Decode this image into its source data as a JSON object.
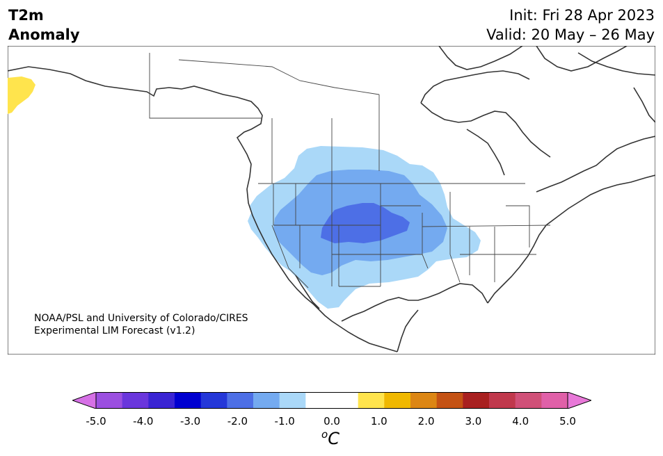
{
  "header": {
    "title_line1": "T2m",
    "title_line2": "Anomaly",
    "init": "Init: Fri 28 Apr 2023",
    "valid": "Valid: 20 May – 26 May"
  },
  "credit": {
    "line1": "NOAA/PSL and University of Colorado/CIRES",
    "line2": "Experimental LIM Forecast (v1.2)"
  },
  "colorbar": {
    "ticks": [
      "-5.0",
      "-4.0",
      "-3.0",
      "-2.0",
      "-1.0",
      "0.0",
      "1.0",
      "2.0",
      "3.0",
      "4.0",
      "5.0"
    ],
    "unit_sup": "o",
    "unit": "C",
    "colors": [
      "#d670e6",
      "#9b4fe0",
      "#6a36dc",
      "#3a24d3",
      "#0000d0",
      "#2437d8",
      "#4d6fe6",
      "#74aaf0",
      "#aad8f8",
      "#ffffff",
      "#ffffff",
      "#ffe44d",
      "#f0b800",
      "#dc8614",
      "#c45214",
      "#a82020",
      "#c0384c",
      "#d05078",
      "#e060a8",
      "#e878d8"
    ]
  },
  "map": {
    "anomaly_areas": [
      {
        "level": "-1.0",
        "color": "#aad8f8"
      },
      {
        "level": "-1.5",
        "color": "#74aaf0"
      },
      {
        "level": "-2.0",
        "color": "#4d6fe6"
      },
      {
        "level": "1.0",
        "color": "#ffe44d"
      }
    ]
  }
}
